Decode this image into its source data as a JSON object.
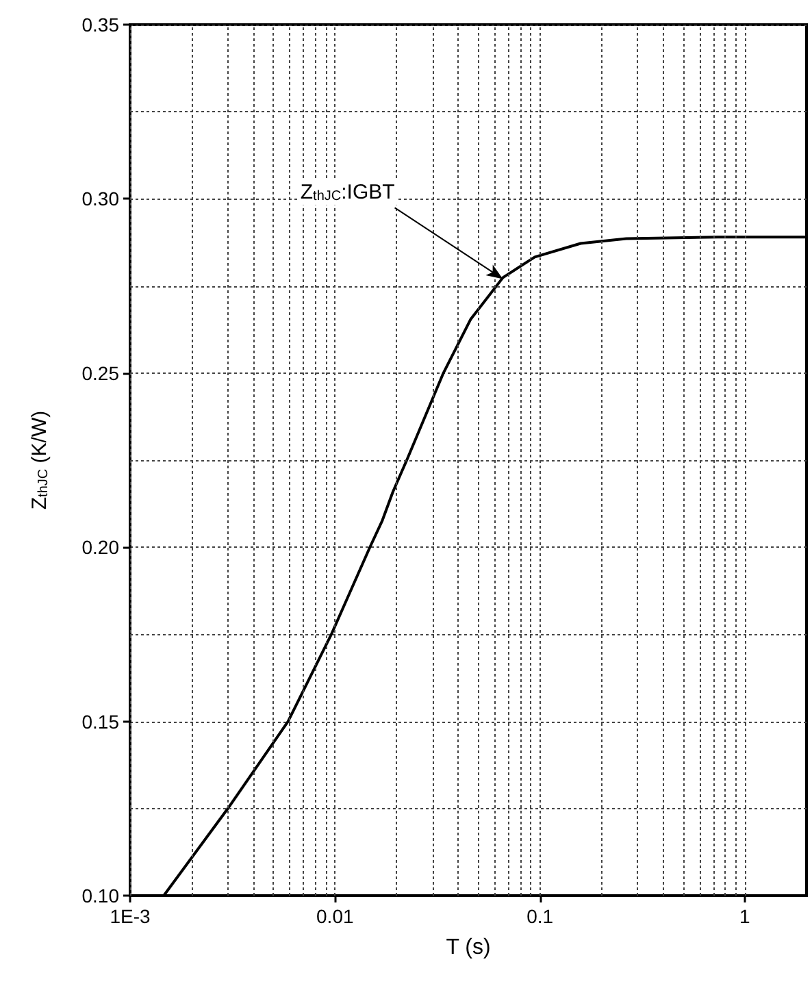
{
  "chart_data": {
    "type": "line",
    "xlabel": "T (s)",
    "ylabel": "Z$_{thJC}$ (K/W)",
    "log": "x",
    "grid": true,
    "marker": "none",
    "line_style": "solid",
    "xlim": [
      0.001,
      2
    ],
    "xticks": [
      {
        "value": 0.001,
        "label": "1E-3"
      },
      0.01,
      0.1,
      1
    ],
    "ylim": [
      0.1,
      0.35
    ],
    "yticks": [
      {
        "value": 0.1,
        "label": "0.10"
      },
      0.15,
      {
        "value": 0.2,
        "label": "0.20"
      },
      0.25,
      {
        "value": 0.3,
        "label": "0.30"
      },
      0.35
    ],
    "annotations": [
      {
        "text": "Z$_{thJC}$:IGBT",
        "x": 0.066,
        "y": 0.277
      }
    ],
    "series": [
      {
        "color": "#000000",
        "x": [
          0.00146,
          0.003,
          0.0059,
          0.0096,
          0.0148,
          0.017,
          0.0192,
          0.0224,
          0.0338,
          0.046,
          0.066,
          0.0944,
          0.158,
          0.264,
          0.74,
          2
        ],
        "values": [
          0.1,
          0.125,
          0.15,
          0.175,
          0.2,
          0.2076,
          0.216,
          0.225,
          0.25,
          0.2655,
          0.2774,
          0.2833,
          0.2872,
          0.2886,
          0.289,
          0.289
        ]
      }
    ]
  }
}
